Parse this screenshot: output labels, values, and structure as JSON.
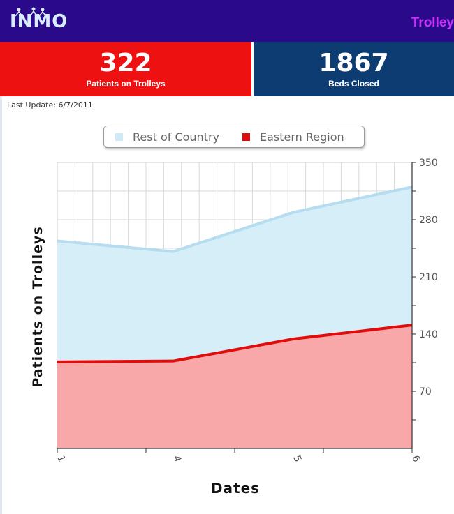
{
  "header": {
    "logo": "INMO",
    "nav_link": "Trolley"
  },
  "stats": [
    {
      "value": "322",
      "label": "Patients on Trolleys"
    },
    {
      "value": "1867",
      "label": "Beds Closed"
    }
  ],
  "last_update": "Last Update: 6/7/2011",
  "colors": {
    "header_bg": "#2a0a8a",
    "patients_bg": "#ee1111",
    "beds_bg": "#0d3c73",
    "rest_of_country_fill": "#d6eef7",
    "rest_of_country_line": "#b5dcef",
    "eastern_region_fill": "#f8a8a8",
    "eastern_region_line": "#e10c0c"
  },
  "chart_data": {
    "type": "area",
    "stacked": true,
    "x": [
      "1",
      "4",
      "5",
      "6"
    ],
    "series": [
      {
        "name": "Eastern Region",
        "values": [
          106,
          107,
          134,
          151
        ]
      },
      {
        "name": "Rest of Country",
        "values": [
          148,
          134,
          155,
          169
        ]
      }
    ],
    "totals": [
      254,
      241,
      289,
      320
    ],
    "xlabel": "Dates",
    "ylabel": "Patients on Trolleys",
    "ylim": [
      0,
      350
    ],
    "yticks": [
      70,
      140,
      210,
      280,
      350
    ],
    "y_axis_side": "right",
    "grid": true,
    "legend": {
      "position": "top",
      "entries": [
        "Rest of Country",
        "Eastern Region"
      ]
    }
  }
}
